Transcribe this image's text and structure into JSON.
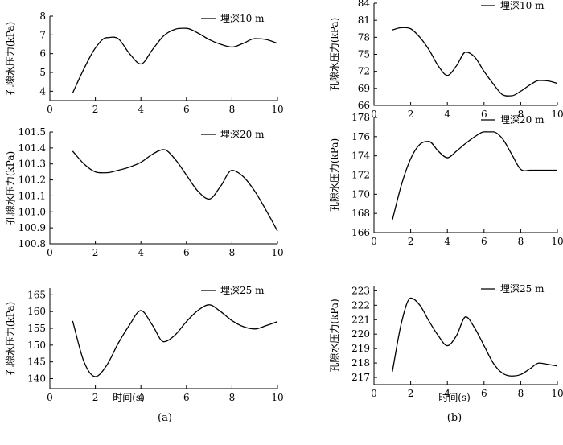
{
  "figure": {
    "xlabel_left": "时间(s)",
    "xlabel_right": "时间(s)",
    "caption_left": "(a)",
    "caption_right": "(b)"
  },
  "chart_data": [
    {
      "type": "line",
      "panel": "a-1",
      "ylabel": "孔隙水压力(kPa)",
      "xlabel": "",
      "xlim": [
        0,
        10
      ],
      "ylim": [
        3.5,
        8
      ],
      "xticks": [
        0,
        2,
        4,
        6,
        8,
        10
      ],
      "yticks": [
        4,
        5,
        6,
        7,
        8
      ],
      "ytick_labels": [
        "4",
        "5",
        "6",
        "7",
        "8"
      ],
      "legend": "top-right",
      "series": [
        {
          "name": "埋深10 m",
          "x": [
            1,
            1.5,
            2,
            2.5,
            3,
            3.5,
            4,
            4.5,
            5,
            5.5,
            6,
            6.5,
            7,
            7.5,
            8,
            8.5,
            9,
            9.5,
            10
          ],
          "y": [
            3.9,
            5.2,
            6.3,
            6.85,
            6.8,
            6.0,
            5.45,
            6.2,
            6.95,
            7.3,
            7.35,
            7.1,
            6.75,
            6.5,
            6.35,
            6.55,
            6.8,
            6.75,
            6.55
          ]
        }
      ]
    },
    {
      "type": "line",
      "panel": "b-1",
      "ylabel": "孔隙水压力(kPa)",
      "xlabel": "",
      "xlim": [
        0,
        10
      ],
      "ylim": [
        66,
        84
      ],
      "xticks": [
        0,
        2,
        4,
        6,
        8,
        10
      ],
      "yticks": [
        66,
        69,
        72,
        75,
        78,
        81,
        84
      ],
      "ytick_labels": [
        "66",
        "69",
        "72",
        "75",
        "78",
        "81",
        "84"
      ],
      "legend": "top-right",
      "series": [
        {
          "name": "埋深10 m",
          "x": [
            1,
            1.5,
            2,
            2.5,
            3,
            3.5,
            4,
            4.5,
            5,
            5.5,
            6,
            6.5,
            7,
            7.5,
            8,
            8.5,
            9,
            9.5,
            10
          ],
          "y": [
            79.3,
            79.7,
            79.5,
            78.0,
            75.8,
            73.0,
            71.3,
            73.0,
            75.4,
            74.5,
            72.0,
            69.8,
            67.9,
            67.7,
            68.5,
            69.6,
            70.4,
            70.3,
            69.9
          ]
        }
      ]
    },
    {
      "type": "line",
      "panel": "a-2",
      "ylabel": "孔隙水压力(kPa)",
      "xlabel": "",
      "xlim": [
        0,
        10
      ],
      "ylim": [
        100.8,
        101.5
      ],
      "xticks": [
        0,
        2,
        4,
        6,
        8,
        10
      ],
      "yticks": [
        100.8,
        100.9,
        101.0,
        101.1,
        101.2,
        101.3,
        101.4,
        101.5
      ],
      "ytick_labels": [
        "100.8",
        "100.9",
        "101.0",
        "101.1",
        "101.2",
        "101.3",
        "101.4",
        "101.5"
      ],
      "legend": "top-right",
      "series": [
        {
          "name": "埋深20 m",
          "x": [
            1,
            1.5,
            2,
            2.5,
            3,
            3.5,
            4,
            4.5,
            5,
            5.5,
            6,
            6.5,
            7,
            7.5,
            8,
            8.5,
            9,
            9.5,
            10
          ],
          "y": [
            101.38,
            101.3,
            101.25,
            101.245,
            101.26,
            101.28,
            101.31,
            101.36,
            101.39,
            101.33,
            101.23,
            101.13,
            101.08,
            101.16,
            101.26,
            101.22,
            101.13,
            101.01,
            100.88
          ]
        }
      ]
    },
    {
      "type": "line",
      "panel": "b-2",
      "ylabel": "孔隙水压力(kPa)",
      "xlabel": "",
      "xlim": [
        0,
        10
      ],
      "ylim": [
        166,
        178
      ],
      "xticks": [
        0,
        2,
        4,
        6,
        8,
        10
      ],
      "yticks": [
        166,
        168,
        170,
        172,
        174,
        176,
        178
      ],
      "ytick_labels": [
        "166",
        "168",
        "170",
        "172",
        "174",
        "176",
        "178"
      ],
      "legend": "top-right",
      "series": [
        {
          "name": "埋深20 m",
          "x": [
            1,
            1.5,
            2,
            2.5,
            3,
            3.5,
            4,
            4.5,
            5,
            5.5,
            6,
            6.5,
            7,
            7.5,
            8,
            8.5,
            9,
            9.5,
            10
          ],
          "y": [
            167.3,
            171.0,
            173.7,
            175.2,
            175.5,
            174.5,
            173.8,
            174.5,
            175.3,
            176.0,
            176.5,
            176.5,
            175.8,
            174.2,
            172.6,
            172.5,
            172.5,
            172.5,
            172.5
          ]
        }
      ]
    },
    {
      "type": "line",
      "panel": "a-3",
      "ylabel": "孔隙水压力(kPa)",
      "xlabel": "",
      "xlim": [
        0,
        10
      ],
      "ylim": [
        137,
        167
      ],
      "xticks": [
        0,
        2,
        4,
        6,
        8,
        10
      ],
      "yticks": [
        140,
        145,
        150,
        155,
        160,
        165
      ],
      "ytick_labels": [
        "140",
        "145",
        "150",
        "155",
        "160",
        "165"
      ],
      "legend": "top-right",
      "series": [
        {
          "name": "埋深25 m",
          "x": [
            1,
            1.5,
            2,
            2.5,
            3,
            3.5,
            4,
            4.5,
            5,
            5.5,
            6,
            6.5,
            7,
            7.5,
            8,
            8.5,
            9,
            9.5,
            10
          ],
          "y": [
            157.2,
            145.0,
            140.6,
            144.0,
            150.5,
            156.0,
            160.3,
            156.0,
            151.0,
            153.0,
            157.0,
            160.3,
            162.0,
            160.0,
            157.3,
            155.5,
            154.8,
            155.8,
            157.0
          ]
        }
      ]
    },
    {
      "type": "line",
      "panel": "b-3",
      "ylabel": "孔隙水压力(kPa)",
      "xlabel": "",
      "xlim": [
        0,
        10
      ],
      "ylim": [
        216.5,
        223.3
      ],
      "xticks": [
        0,
        2,
        4,
        6,
        8,
        10
      ],
      "yticks": [
        217,
        218,
        219,
        220,
        221,
        222,
        223
      ],
      "ytick_labels": [
        "217",
        "218",
        "219",
        "220",
        "221",
        "222",
        "223"
      ],
      "legend": "top-right",
      "series": [
        {
          "name": "埋深25 m",
          "x": [
            1,
            1.5,
            2,
            2.5,
            3,
            3.5,
            4,
            4.5,
            5,
            5.5,
            6,
            6.5,
            7,
            7.5,
            8,
            8.5,
            9,
            9.5,
            10
          ],
          "y": [
            217.4,
            220.8,
            222.5,
            222.0,
            220.9,
            219.9,
            219.2,
            219.9,
            221.2,
            220.4,
            219.2,
            218.0,
            217.3,
            217.1,
            217.2,
            217.6,
            218.0,
            217.9,
            217.8
          ]
        }
      ]
    }
  ]
}
